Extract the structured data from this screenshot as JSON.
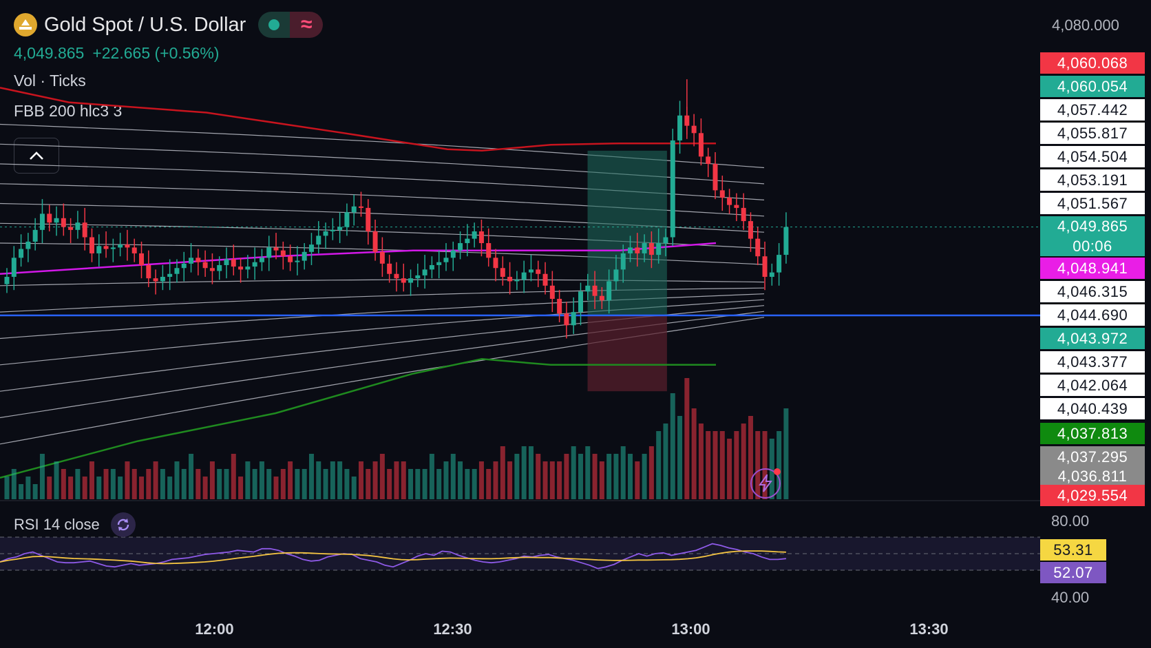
{
  "header": {
    "title": "Gold Spot / U.S. Dollar",
    "price": "4,049.865",
    "change": "+22.665 (+0.56%)",
    "volume_label": "Vol · Ticks",
    "indicator_label": "FBB 200 hlc3 3",
    "rsi_label": "RSI 14 close"
  },
  "colors": {
    "background": "#0a0c14",
    "up": "#22ab94",
    "down": "#f23645",
    "basis": "#d218e8",
    "upper_band": "#c8141e",
    "lower_band": "#1f8a1f",
    "horizontal_line": "#2962ff",
    "rsi_line": "#8e5ae8",
    "rsi_ma": "#f5c542"
  },
  "price_axis_labels": [
    {
      "value": "4,060.068",
      "bg": "#f23645",
      "fg": "#ffffff"
    },
    {
      "value": "4,060.054",
      "bg": "#22ab94",
      "fg": "#ffffff"
    },
    {
      "value": "4,057.442",
      "bg": "#ffffff",
      "fg": "#131722"
    },
    {
      "value": "4,055.817",
      "bg": "#ffffff",
      "fg": "#131722"
    },
    {
      "value": "4,054.504",
      "bg": "#ffffff",
      "fg": "#131722"
    },
    {
      "value": "4,053.191",
      "bg": "#ffffff",
      "fg": "#131722"
    },
    {
      "value": "4,051.567",
      "bg": "#ffffff",
      "fg": "#131722"
    },
    {
      "value": "4,049.865",
      "bg": "#22ab94",
      "fg": "#ffffff",
      "sub": "00:06"
    },
    {
      "value": "4,048.941",
      "bg": "#e91ee6",
      "fg": "#ffffff"
    },
    {
      "value": "4,046.315",
      "bg": "#ffffff",
      "fg": "#131722"
    },
    {
      "value": "4,044.690",
      "bg": "#ffffff",
      "fg": "#131722"
    },
    {
      "value": "4,043.972",
      "bg": "#22ab94",
      "fg": "#ffffff"
    },
    {
      "value": "4,043.377",
      "bg": "#ffffff",
      "fg": "#131722"
    },
    {
      "value": "4,042.064",
      "bg": "#ffffff",
      "fg": "#131722"
    },
    {
      "value": "4,040.439",
      "bg": "#ffffff",
      "fg": "#131722"
    },
    {
      "value": "4,037.813",
      "bg": "#0f8a0f",
      "fg": "#ffffff"
    },
    {
      "value": "4,037.295",
      "bg": "#8a8a8a",
      "fg": "#ffffff"
    },
    {
      "value": "4,036.811",
      "bg": "#8a8a8a",
      "fg": "#ffffff"
    },
    {
      "value": "4,029.554",
      "bg": "#f23645",
      "fg": "#ffffff"
    }
  ],
  "rsi_axis_labels": [
    {
      "value": "53.31",
      "bg": "#f5d742",
      "fg": "#131722"
    },
    {
      "value": "52.07",
      "bg": "#7e57c2",
      "fg": "#ffffff"
    }
  ],
  "chart_data": {
    "type": "line",
    "title": "Gold Spot / U.S. Dollar",
    "y_axis_top_tick": "4,080.000",
    "x_ticks": [
      "12:00",
      "12:30",
      "13:00",
      "13:30"
    ],
    "rsi_ticks": [
      "80.00",
      "40.00"
    ],
    "rsi_ylim": [
      40,
      80
    ],
    "x_start": "11:33",
    "x_end": "13:44",
    "last_bar": "13:12",
    "price_ylim": [
      4030.0,
      4062.0
    ],
    "horizontal_line": 4043.972,
    "position_box": {
      "from": "12:47",
      "to": "12:57",
      "entry": 4043.97,
      "target": 4055.2,
      "stop": 4038.8
    },
    "price_close": [
      4046.6,
      4047.9,
      4048.5,
      4049.0,
      4049.8,
      4050.9,
      4050.3,
      4050.6,
      4050.0,
      4049.8,
      4050.3,
      4049.3,
      4048.2,
      4048.7,
      4048.5,
      4048.6,
      4048.8,
      4048.6,
      4048.2,
      4047.4,
      4046.5,
      4046.3,
      4046.6,
      4046.8,
      4047.2,
      4047.5,
      4047.9,
      4047.6,
      4047.2,
      4047.0,
      4047.4,
      4047.8,
      4047.3,
      4047.1,
      4047.3,
      4047.6,
      4047.9,
      4048.6,
      4048.4,
      4048.0,
      4047.6,
      4047.7,
      4048.3,
      4048.8,
      4049.4,
      4049.7,
      4049.8,
      4050.0,
      4051.0,
      4051.4,
      4051.3,
      4049.7,
      4048.3,
      4047.5,
      4046.8,
      4046.5,
      4046.2,
      4046.5,
      4046.7,
      4047.1,
      4047.4,
      4047.6,
      4047.9,
      4048.4,
      4048.9,
      4049.2,
      4049.7,
      4048.9,
      4047.9,
      4047.2,
      4046.6,
      4046.3,
      4046.4,
      4046.9,
      4047.1,
      4046.8,
      4046.0,
      4045.1,
      4044.1,
      4043.3,
      4044.2,
      4045.6,
      4046.0,
      4045.3,
      4045.0,
      4046.3,
      4047.1,
      4048.2,
      4048.6,
      4048.2,
      4048.9,
      4048.1,
      4048.9,
      4049.3,
      4055.9,
      4057.6,
      4056.9,
      4056.4,
      4054.8,
      4054.3,
      4052.5,
      4052.0,
      4051.5,
      4051.3,
      4050.4,
      4049.2,
      4048.0,
      4046.6,
      4046.9,
      4048.1,
      4050.0
    ],
    "fbb_upper_band": [
      [
        0,
        4059.5
      ],
      [
        100,
        4058.5
      ],
      [
        300,
        4057.8
      ],
      [
        500,
        4056.4
      ],
      [
        650,
        4055.3
      ],
      [
        700,
        4055.2
      ],
      [
        800,
        4055.6
      ],
      [
        900,
        4055.7
      ],
      [
        1040,
        4055.7
      ]
    ],
    "basis": [
      [
        0,
        4046.8
      ],
      [
        200,
        4047.4
      ],
      [
        400,
        4048.0
      ],
      [
        600,
        4048.4
      ],
      [
        800,
        4048.4
      ],
      [
        900,
        4048.4
      ],
      [
        1040,
        4048.9
      ]
    ],
    "fbb_lower_band": [
      [
        0,
        4032.9
      ],
      [
        200,
        4035.4
      ],
      [
        400,
        4037.3
      ],
      [
        600,
        4040.0
      ],
      [
        700,
        4041.0
      ],
      [
        800,
        4040.6
      ],
      [
        1040,
        4040.6
      ]
    ],
    "volume": [
      3,
      4,
      2,
      3,
      2,
      6,
      3,
      5,
      4,
      3,
      4,
      3,
      5,
      3,
      4,
      4,
      3,
      5,
      4,
      3,
      4,
      5,
      4,
      3,
      5,
      4,
      6,
      4,
      3,
      5,
      4,
      4,
      6,
      3,
      5,
      4,
      5,
      4,
      3,
      4,
      5,
      4,
      4,
      6,
      5,
      4,
      5,
      5,
      4,
      3,
      5,
      4,
      5,
      6,
      4,
      5,
      5,
      4,
      4,
      4,
      6,
      4,
      5,
      6,
      5,
      4,
      4,
      5,
      4,
      5,
      7,
      5,
      6,
      7,
      7,
      6,
      5,
      5,
      5,
      6,
      7,
      6,
      7,
      6,
      5,
      6,
      6,
      7,
      6,
      5,
      6,
      7,
      9,
      10,
      14,
      11,
      16,
      12,
      10,
      9,
      9,
      9,
      8,
      9,
      10,
      11,
      9,
      9,
      8,
      9,
      12
    ],
    "rsi": [
      50,
      54,
      56,
      60,
      62,
      58,
      54,
      50,
      49,
      49,
      50,
      51,
      48,
      45,
      44,
      46,
      48,
      46,
      47,
      48,
      50,
      53,
      54,
      55,
      57,
      59,
      60,
      61,
      62,
      64,
      63,
      62,
      66,
      66,
      64,
      60,
      57,
      53,
      51,
      52,
      56,
      58,
      60,
      59,
      54,
      52,
      50,
      46,
      44,
      48,
      52,
      57,
      60,
      58,
      63,
      62,
      58,
      55,
      52,
      50,
      49,
      50,
      52,
      54,
      57,
      56,
      58,
      59,
      56,
      54,
      52,
      49,
      46,
      42,
      44,
      47,
      52,
      56,
      60,
      57,
      60,
      61,
      58,
      60,
      62,
      64,
      68,
      72,
      70,
      67,
      65,
      62,
      60,
      56,
      53,
      53,
      54
    ]
  }
}
